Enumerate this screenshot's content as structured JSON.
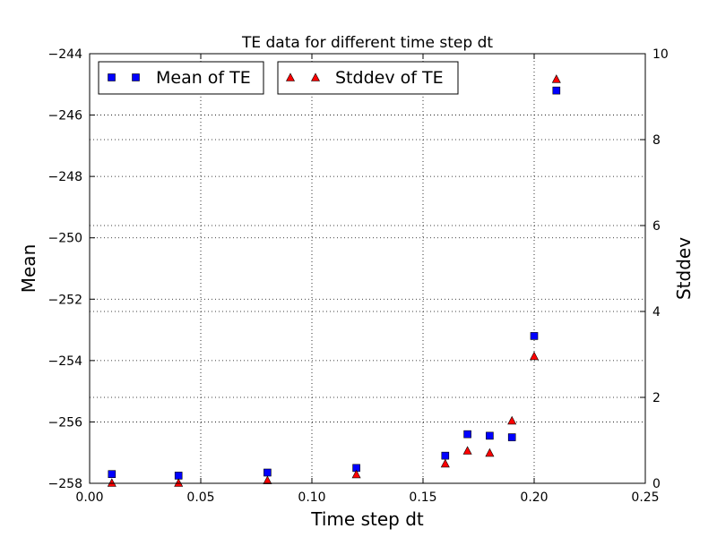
{
  "chart_data": {
    "type": "scatter",
    "title": "TE data for different time step dt",
    "xlabel": "Time step dt",
    "ylabel_left": "Mean",
    "ylabel_right": "Stddev",
    "xlim": [
      0.0,
      0.25
    ],
    "ylim_left": [
      -258,
      -244
    ],
    "ylim_right": [
      0,
      10
    ],
    "xticks": [
      "0.00",
      "0.05",
      "0.10",
      "0.15",
      "0.20",
      "0.25"
    ],
    "yticks_left": [
      "−258",
      "−256",
      "−254",
      "−252",
      "−250",
      "−248",
      "−246",
      "−244"
    ],
    "yticks_right": [
      "0",
      "2",
      "4",
      "6",
      "8",
      "10"
    ],
    "grid": true,
    "legend_placement": "top-left",
    "series": [
      {
        "name": "Mean of TE",
        "axis": "left",
        "marker": "square",
        "color": "#0000ff",
        "x": [
          0.01,
          0.04,
          0.08,
          0.12,
          0.16,
          0.17,
          0.18,
          0.19,
          0.2,
          0.21
        ],
        "y": [
          -257.7,
          -257.75,
          -257.65,
          -257.5,
          -257.1,
          -256.4,
          -256.45,
          -256.5,
          -253.2,
          -245.2
        ]
      },
      {
        "name": "Stddev of TE",
        "axis": "right",
        "marker": "triangle",
        "color": "#ff0000",
        "x": [
          0.01,
          0.04,
          0.08,
          0.12,
          0.16,
          0.17,
          0.18,
          0.19,
          0.2,
          0.21
        ],
        "y": [
          0.0,
          0.0,
          0.06,
          0.2,
          0.45,
          0.75,
          0.7,
          1.45,
          2.95,
          9.4
        ]
      }
    ]
  }
}
